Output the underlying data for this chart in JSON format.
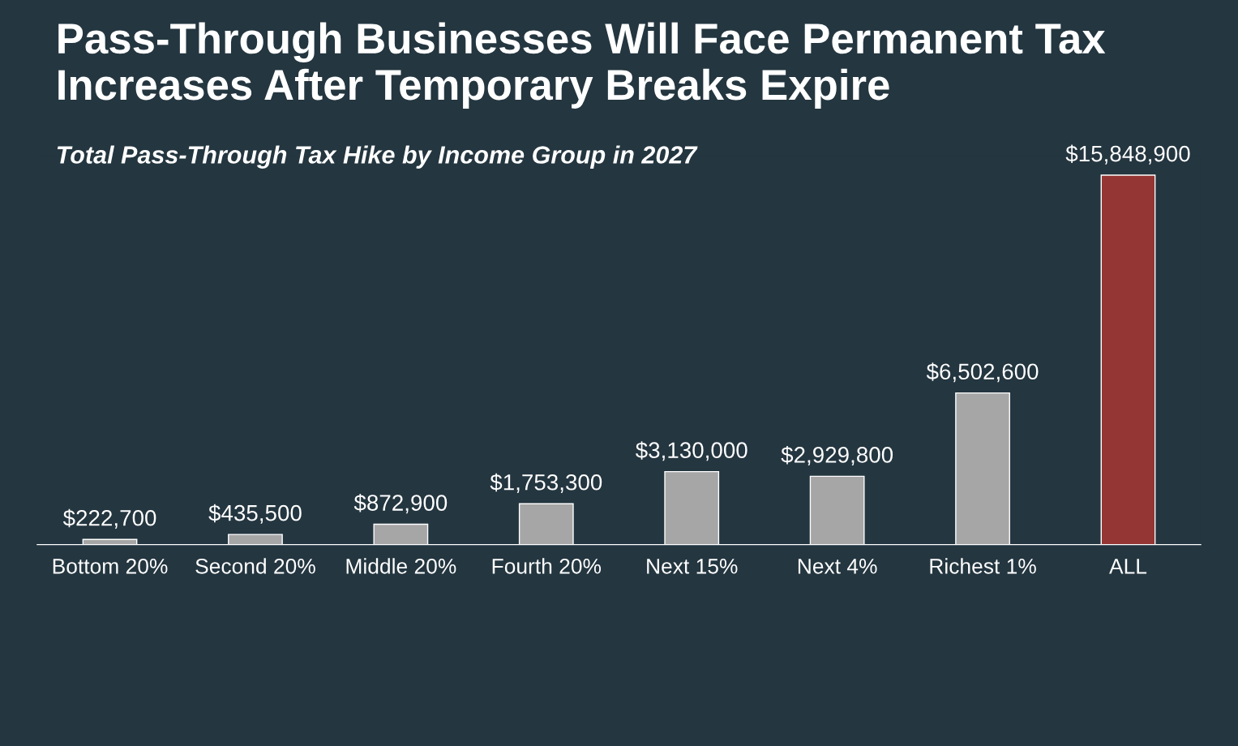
{
  "chart_data": {
    "type": "bar",
    "title": "Pass-Through Businesses Will Face Permanent Tax Increases After Temporary Breaks Expire",
    "subtitle": "Total Pass-Through Tax Hike by Income Group in 2027",
    "categories": [
      "Bottom 20%",
      "Second 20%",
      "Middle 20%",
      "Fourth 20%",
      "Next 15%",
      "Next 4%",
      "Richest 1%",
      "ALL"
    ],
    "values": [
      222700,
      435500,
      872900,
      1753300,
      3130000,
      2929800,
      6502600,
      15848900
    ],
    "colors": [
      "#a6a6a6",
      "#a6a6a6",
      "#a6a6a6",
      "#a6a6a6",
      "#a6a6a6",
      "#a6a6a6",
      "#a6a6a6",
      "#943634"
    ],
    "value_labels": [
      "$222,700",
      "$435,500",
      "$872,900",
      "$1,753,300",
      "$3,130,000",
      "$2,929,800",
      "$6,502,600",
      "$15,848,900"
    ],
    "tick_labels": "x",
    "grid": false,
    "legend": false
  }
}
